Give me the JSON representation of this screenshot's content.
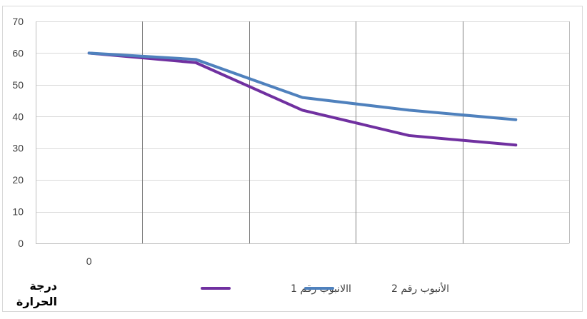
{
  "chart_data": {
    "type": "line",
    "x_tick_labels": [
      "0"
    ],
    "ylim": [
      0,
      70
    ],
    "yticks": [
      0,
      10,
      20,
      30,
      40,
      50,
      60,
      70
    ],
    "grid": true,
    "legend_position": "bottom",
    "ylabel_lines": [
      "درجة",
      "الحرارة"
    ],
    "series": [
      {
        "name": "االانبوب رقم 1",
        "color": "#7030A0",
        "values": [
          60,
          57,
          42,
          34,
          31
        ]
      },
      {
        "name": "الأنبوب رقم 2",
        "color": "#4F81BD",
        "values": [
          60,
          58,
          46,
          42,
          39
        ]
      }
    ]
  }
}
